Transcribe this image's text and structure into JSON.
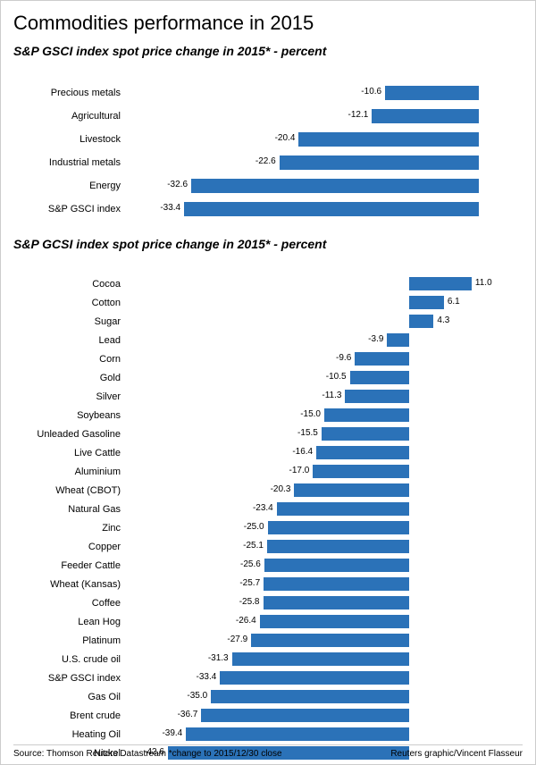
{
  "title": "Commodities performance in 2015",
  "chart1": {
    "type": "bar",
    "subtitle": "S&P GSCI index spot price change in 2015* - percent",
    "bar_color": "#2b72b8",
    "label_fontsize": 11,
    "value_fontsize": 10,
    "background_color": "#ffffff",
    "domain_min": -40,
    "domain_max": 5,
    "rows": [
      {
        "label": "Precious metals",
        "value": -10.6
      },
      {
        "label": "Agricultural",
        "value": -12.1
      },
      {
        "label": "Livestock",
        "value": -20.4
      },
      {
        "label": "Industrial metals",
        "value": -22.6
      },
      {
        "label": "Energy",
        "value": -32.6
      },
      {
        "label": "S&P GSCI index",
        "value": -33.4
      }
    ]
  },
  "chart2": {
    "type": "bar",
    "subtitle": "S&P GCSI index spot price change in 2015* - percent",
    "bar_color": "#2b72b8",
    "label_fontsize": 11,
    "value_fontsize": 10,
    "background_color": "#ffffff",
    "domain_min": -50,
    "domain_max": 20,
    "rows": [
      {
        "label": "Cocoa",
        "value": 11.0
      },
      {
        "label": "Cotton",
        "value": 6.1
      },
      {
        "label": "Sugar",
        "value": 4.3
      },
      {
        "label": "Lead",
        "value": -3.9
      },
      {
        "label": "Corn",
        "value": -9.6
      },
      {
        "label": "Gold",
        "value": -10.5
      },
      {
        "label": "Silver",
        "value": -11.3
      },
      {
        "label": "Soybeans",
        "value": -15.0
      },
      {
        "label": "Unleaded Gasoline",
        "value": -15.5
      },
      {
        "label": "Live Cattle",
        "value": -16.4
      },
      {
        "label": "Aluminium",
        "value": -17.0
      },
      {
        "label": "Wheat (CBOT)",
        "value": -20.3
      },
      {
        "label": "Natural Gas",
        "value": -23.4
      },
      {
        "label": "Zinc",
        "value": -25.0
      },
      {
        "label": "Copper",
        "value": -25.1
      },
      {
        "label": "Feeder Cattle",
        "value": -25.6
      },
      {
        "label": "Wheat (Kansas)",
        "value": -25.7
      },
      {
        "label": "Coffee",
        "value": -25.8
      },
      {
        "label": "Lean Hog",
        "value": -26.4
      },
      {
        "label": "Platinum",
        "value": -27.9
      },
      {
        "label": "U.S. crude oil",
        "value": -31.3
      },
      {
        "label": "S&P GSCI index",
        "value": -33.4
      },
      {
        "label": "Gas Oil",
        "value": -35.0
      },
      {
        "label": "Brent crude",
        "value": -36.7
      },
      {
        "label": "Heating Oil",
        "value": -39.4
      },
      {
        "label": "Nickel",
        "value": -42.6
      }
    ]
  },
  "footer": {
    "left": "Source: Thomson Reuters Datastream *change to 2015/12/30 close",
    "right": "Reuters graphic/Vincent Flasseur"
  }
}
